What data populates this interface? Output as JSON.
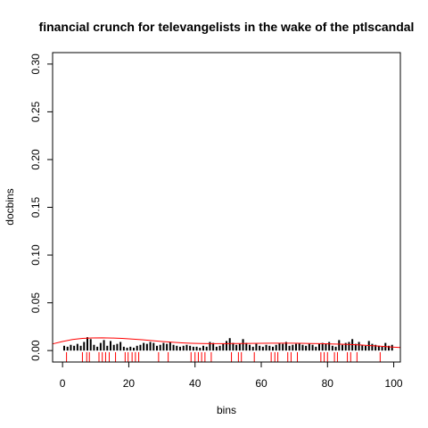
{
  "chart_data": {
    "type": "bar",
    "title": "financial crunch for televangelists in the wake of the ptlscandal",
    "xlabel": "bins",
    "ylabel": "docbins",
    "xlim": [
      -3,
      102
    ],
    "ylim": [
      -0.012,
      0.312
    ],
    "xticks": [
      0,
      20,
      40,
      60,
      80,
      100
    ],
    "yticks": [
      0.0,
      0.05,
      0.1,
      0.15,
      0.2,
      0.25,
      0.3
    ],
    "ytick_labels": [
      "0.00",
      "0.05",
      "0.10",
      "0.15",
      "0.20",
      "0.25",
      "0.30"
    ],
    "bins": [
      0,
      1,
      2,
      3,
      4,
      5,
      6,
      7,
      8,
      9,
      10,
      11,
      12,
      13,
      14,
      15,
      16,
      17,
      18,
      19,
      20,
      21,
      22,
      23,
      24,
      25,
      26,
      27,
      28,
      29,
      30,
      31,
      32,
      33,
      34,
      35,
      36,
      37,
      38,
      39,
      40,
      41,
      42,
      43,
      44,
      45,
      46,
      47,
      48,
      49,
      50,
      51,
      52,
      53,
      54,
      55,
      56,
      57,
      58,
      59,
      60,
      61,
      62,
      63,
      64,
      65,
      66,
      67,
      68,
      69,
      70,
      71,
      72,
      73,
      74,
      75,
      76,
      77,
      78,
      79,
      80,
      81,
      82,
      83,
      84,
      85,
      86,
      87,
      88,
      89,
      90,
      91,
      92,
      93,
      94,
      95,
      96,
      97,
      98,
      99
    ],
    "docbins": [
      0.005,
      0.004,
      0.006,
      0.005,
      0.007,
      0.005,
      0.009,
      0.014,
      0.012,
      0.006,
      0.004,
      0.008,
      0.011,
      0.005,
      0.01,
      0.006,
      0.007,
      0.009,
      0.004,
      0.003,
      0.004,
      0.003,
      0.005,
      0.006,
      0.008,
      0.007,
      0.009,
      0.008,
      0.005,
      0.006,
      0.008,
      0.007,
      0.009,
      0.006,
      0.005,
      0.004,
      0.005,
      0.006,
      0.005,
      0.004,
      0.004,
      0.003,
      0.005,
      0.004,
      0.009,
      0.008,
      0.004,
      0.005,
      0.007,
      0.01,
      0.013,
      0.008,
      0.006,
      0.007,
      0.012,
      0.008,
      0.006,
      0.004,
      0.007,
      0.005,
      0.004,
      0.006,
      0.005,
      0.004,
      0.006,
      0.008,
      0.007,
      0.009,
      0.005,
      0.006,
      0.007,
      0.008,
      0.006,
      0.005,
      0.007,
      0.006,
      0.004,
      0.007,
      0.008,
      0.007,
      0.009,
      0.005,
      0.004,
      0.011,
      0.006,
      0.008,
      0.009,
      0.012,
      0.007,
      0.009,
      0.006,
      0.005,
      0.01,
      0.007,
      0.006,
      0.005,
      0.004,
      0.008,
      0.005,
      0.006
    ],
    "smooth_curve": {
      "color": "#ff0000",
      "x": [
        -3,
        0,
        3,
        6,
        9,
        12,
        15,
        18,
        21,
        24,
        27,
        30,
        33,
        36,
        39,
        42,
        45,
        48,
        51,
        54,
        57,
        60,
        63,
        66,
        69,
        72,
        75,
        78,
        81,
        84,
        87,
        90,
        93,
        96,
        99,
        102
      ],
      "y": [
        0.007,
        0.0095,
        0.0115,
        0.0127,
        0.0132,
        0.0133,
        0.0131,
        0.0127,
        0.0121,
        0.0113,
        0.0104,
        0.0095,
        0.0087,
        0.0081,
        0.0076,
        0.0073,
        0.0072,
        0.0072,
        0.0073,
        0.0074,
        0.0075,
        0.0076,
        0.0077,
        0.0077,
        0.0077,
        0.0076,
        0.0074,
        0.0072,
        0.007,
        0.0067,
        0.0063,
        0.0058,
        0.0052,
        0.0045,
        0.0038,
        0.0032
      ]
    },
    "rug": {
      "color": "#ff0000",
      "x": [
        1.2,
        6.0,
        7.3,
        8.1,
        11.0,
        12.0,
        13.0,
        14.1,
        16.0,
        18.9,
        19.8,
        21.0,
        22.0,
        23.0,
        29.0,
        31.9,
        38.8,
        40.0,
        41.0,
        42.0,
        43.0,
        44.9,
        51.0,
        53.1,
        54.0,
        57.9,
        63.0,
        64.1,
        65.0,
        68.0,
        69.0,
        70.9,
        78.0,
        79.0,
        80.0,
        82.1,
        83.0,
        86.0,
        87.0,
        88.9,
        95.9
      ]
    }
  }
}
